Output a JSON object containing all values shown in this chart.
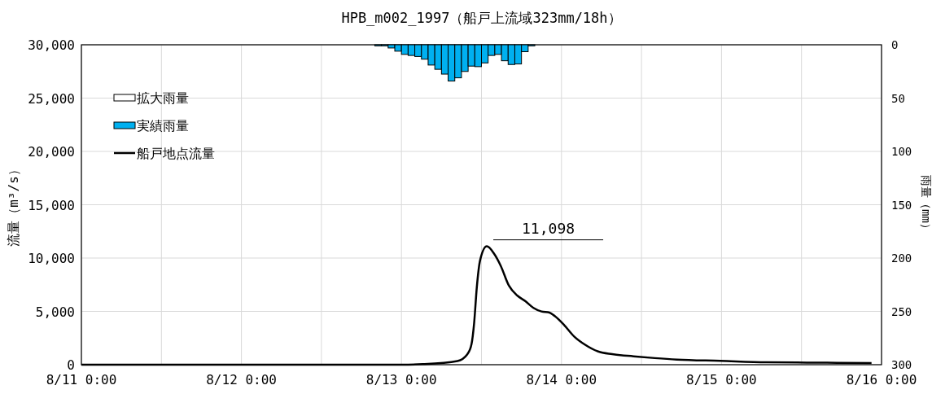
{
  "chart_data": {
    "type": "line",
    "title": "HPB_m002_1997（船戸上流域323mm/18h）",
    "ylabel": "流量（m³/s）",
    "y2label": "雨量（mm）",
    "xlim": [
      "--08-11T00:00",
      "--08-16T00:00"
    ],
    "xticks": [
      {
        "value": "--08-11T00:00",
        "label": "8/11 0:00"
      },
      {
        "value": "--08-11T12:00",
        "label": null
      },
      {
        "value": "--08-12T00:00",
        "label": "8/12 0:00"
      },
      {
        "value": "--08-12T12:00",
        "label": null
      },
      {
        "value": "--08-13T00:00",
        "label": "8/13 0:00"
      },
      {
        "value": "--08-13T12:00",
        "label": null
      },
      {
        "value": "--08-14T00:00",
        "label": "8/14 0:00"
      },
      {
        "value": "--08-14T12:00",
        "label": null
      },
      {
        "value": "--08-15T00:00",
        "label": "8/15 0:00"
      },
      {
        "value": "--08-15T12:00",
        "label": null
      },
      {
        "value": "--08-16T00:00",
        "label": "8/16 0:00"
      }
    ],
    "ylim": [
      0,
      30000
    ],
    "yticks": [
      {
        "value": 0,
        "label": "0"
      },
      {
        "value": 5000,
        "label": "5,000"
      },
      {
        "value": 10000,
        "label": "10,000"
      },
      {
        "value": 15000,
        "label": "15,000"
      },
      {
        "value": 20000,
        "label": "20,000"
      },
      {
        "value": 25000,
        "label": "25,000"
      },
      {
        "value": 30000,
        "label": "30,000"
      }
    ],
    "y2lim": [
      300,
      0
    ],
    "y2ticks": [
      0,
      50,
      100,
      150,
      200,
      250,
      300
    ],
    "grid": true,
    "legend": "top left",
    "series": [
      {
        "name": "拡大雨量",
        "type": "bar",
        "axis": "y2",
        "color": "#ffffff"
      },
      {
        "name": "実績雨量",
        "type": "bar",
        "axis": "y2",
        "color": "#00b0f0",
        "x": [
          "--08-12T20:30",
          "--08-12T21:30",
          "--08-12T22:30",
          "--08-12T23:30",
          "--08-13T00:30",
          "--08-13T01:30",
          "--08-13T02:30",
          "--08-13T03:30",
          "--08-13T04:30",
          "--08-13T05:30",
          "--08-13T06:30",
          "--08-13T07:30",
          "--08-13T08:30",
          "--08-13T09:30",
          "--08-13T10:30",
          "--08-13T11:30",
          "--08-13T12:30",
          "--08-13T13:30",
          "--08-13T14:30",
          "--08-13T15:30",
          "--08-13T16:30",
          "--08-13T17:30",
          "--08-13T18:30",
          "--08-13T19:30"
        ],
        "values": [
          1,
          1,
          3,
          6,
          9,
          10,
          11,
          13.5,
          19,
          23,
          27.5,
          34,
          31,
          25,
          20,
          20.5,
          17,
          10,
          9,
          15,
          18.5,
          18,
          6.5,
          1
        ]
      },
      {
        "name": "船戸地点流量",
        "color": "#000000",
        "x": [
          "--08-11T00:00",
          "--08-12T16:00",
          "--08-13T00:00",
          "--08-13T03:12",
          "--08-13T08:24",
          "--08-13T09:54",
          "--08-13T10:30",
          "--08-13T10:54",
          "--08-13T11:18",
          "--08-13T11:48",
          "--08-13T12:48",
          "--08-13T13:54",
          "--08-13T14:54",
          "--08-13T16:06",
          "--08-13T17:24",
          "--08-13T18:36",
          "--08-13T19:48",
          "--08-13T21:00",
          "--08-13T22:12",
          "--08-13T23:00",
          "--08-14T00:18",
          "--08-14T01:54",
          "--08-14T03:30",
          "--08-14T05:30",
          "--08-14T07:36",
          "--08-14T10:48",
          "--08-14T14:00",
          "--08-14T17:18",
          "--08-14T23:48",
          "--08-15T06:42",
          "--08-15T12:48",
          "--08-15T22:30"
        ],
        "values": [
          0,
          0,
          0,
          50,
          350,
          1000,
          1900,
          3900,
          7250,
          9800,
          11098,
          10400,
          9260,
          7430,
          6470,
          5950,
          5320,
          4990,
          4890,
          4560,
          3790,
          2650,
          1890,
          1240,
          990,
          790,
          620,
          480,
          360,
          230,
          200,
          150
        ]
      }
    ],
    "annotations": [
      {
        "text": "11,098",
        "x": "--08-13T12:48",
        "y": 11098
      }
    ]
  }
}
